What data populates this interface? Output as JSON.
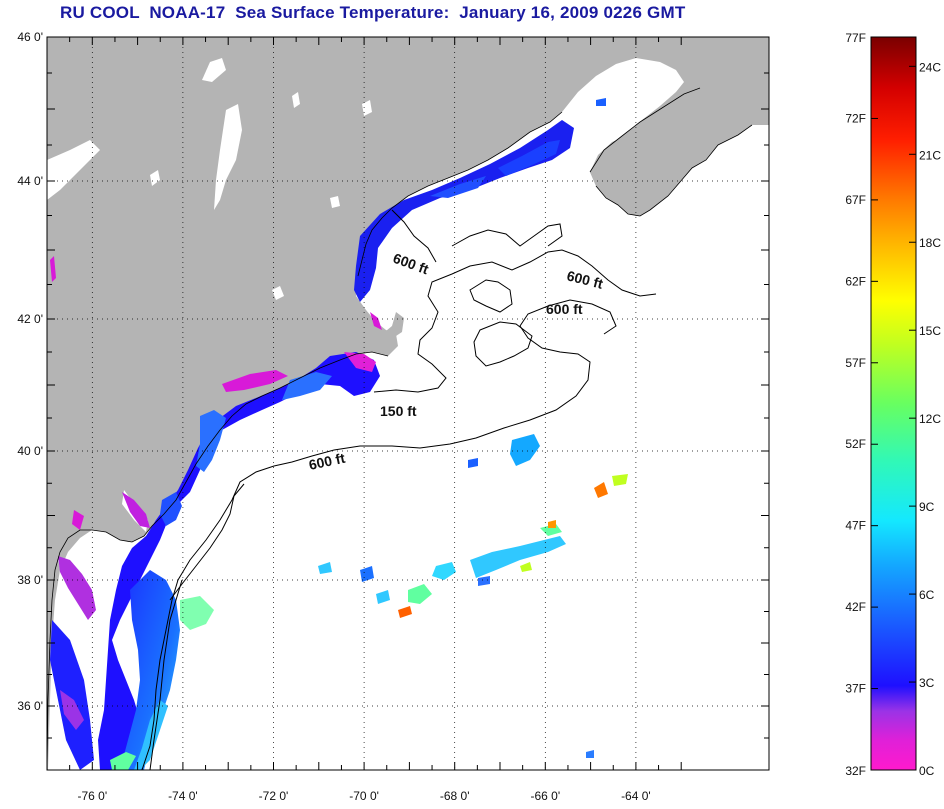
{
  "title": "RU COOL  NOAA-17  Sea Surface Temperature:  January 16, 2009 0226 GMT",
  "map": {
    "lat_labels": [
      {
        "lat": 46,
        "label": "46 0'"
      },
      {
        "lat": 44,
        "label": "44 0'"
      },
      {
        "lat": 42,
        "label": "42 0'"
      },
      {
        "lat": 40,
        "label": "40 0'"
      },
      {
        "lat": 38,
        "label": "38 0'"
      },
      {
        "lat": 36,
        "label": "36 0'"
      }
    ],
    "lon_labels": [
      {
        "lon": -76,
        "label": "-76 0'"
      },
      {
        "lon": -74,
        "label": "-74 0'"
      },
      {
        "lon": -72,
        "label": "-72 0'"
      },
      {
        "lon": -70,
        "label": "-70 0'"
      },
      {
        "lon": -68,
        "label": "-68 0'"
      },
      {
        "lon": -66,
        "label": "-66 0'"
      },
      {
        "lon": -64,
        "label": "-64 0'"
      }
    ],
    "contour_labels": [
      "600 ft",
      "600 ft",
      "600 ft",
      "150 ft",
      "600 ft"
    ],
    "grid": "dotted",
    "colors": {
      "land": "#b4b4b4",
      "ocean_no_data": "#ffffff"
    }
  },
  "colorbar": {
    "f_labels": [
      "77F",
      "72F",
      "67F",
      "62F",
      "57F",
      "52F",
      "47F",
      "42F",
      "37F",
      "32F"
    ],
    "c_labels": [
      "24C",
      "21C",
      "18C",
      "15C",
      "12C",
      "9C",
      "6C",
      "3C",
      "0C"
    ],
    "stops": [
      "#ff1acd",
      "#b030e0",
      "#1a1aff",
      "#1a7dff",
      "#14e8ff",
      "#38f6a0",
      "#b4ff28",
      "#ffff00",
      "#ff9600",
      "#ff2800",
      "#d00000",
      "#800000"
    ]
  }
}
